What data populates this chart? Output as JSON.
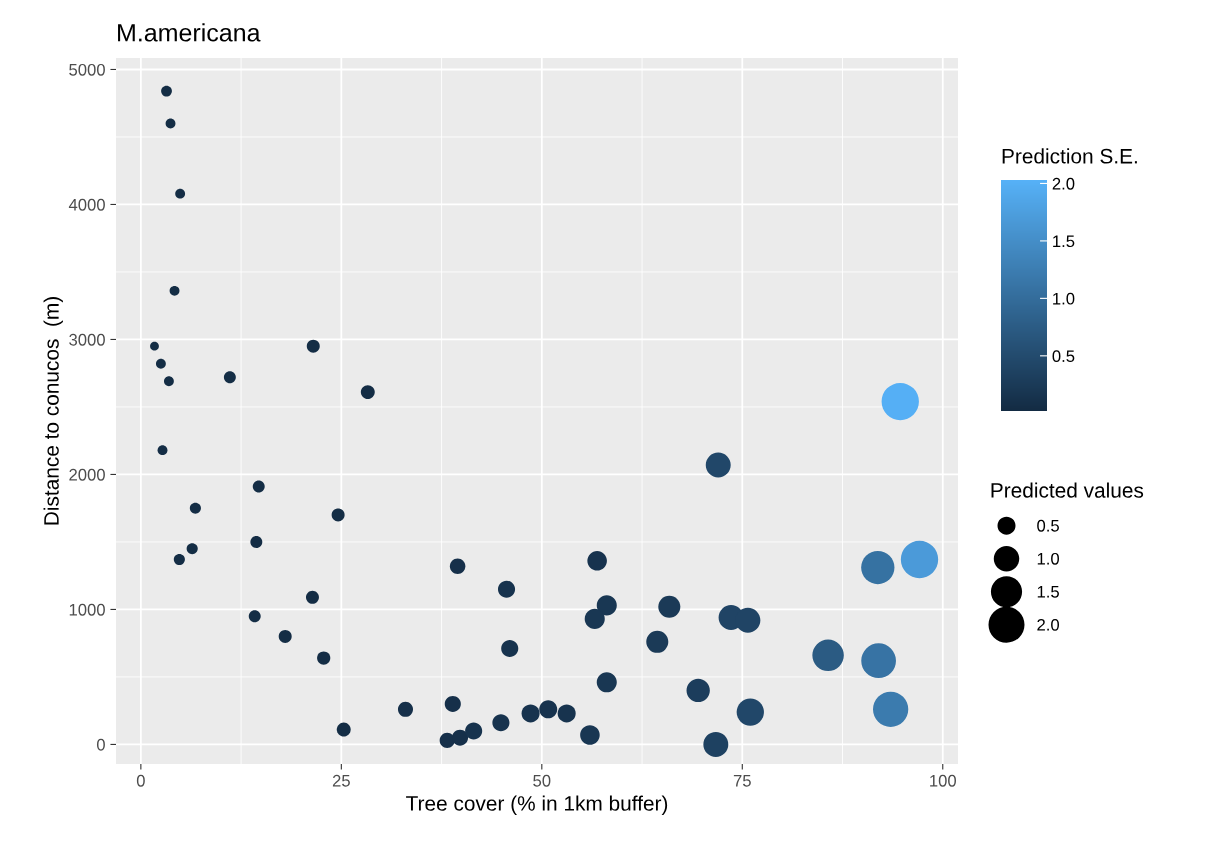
{
  "chart_data": {
    "type": "bubble",
    "title": "M.americana",
    "xlabel": "Tree cover (% in 1km buffer)",
    "ylabel": "Distance to conucos  (m)",
    "clabel": "Prediction S.E.",
    "legend_title": "Predicted values",
    "x": [
      3.2,
      3.7,
      4.9,
      4.2,
      1.7,
      11.1,
      21.5,
      28.3,
      2.5,
      3.5,
      2.7,
      14.7,
      6.8,
      24.6,
      14.4,
      6.4,
      4.8,
      39.5,
      45.6,
      21.4,
      14.2,
      18.0,
      46.0,
      22.8,
      33.0,
      38.9,
      25.3,
      38.2,
      39.8,
      41.5,
      44.9,
      94.7,
      72.0,
      91.9,
      97.1,
      56.9,
      58.1,
      56.6,
      65.9,
      73.6,
      75.7,
      64.4,
      85.7,
      92.0,
      58.1,
      69.5,
      93.5,
      76.0,
      48.6,
      50.8,
      53.1,
      56.0,
      71.7
    ],
    "values": [
      4840,
      4600,
      4080,
      3360,
      2950,
      2720,
      2950,
      2610,
      2820,
      2690,
      2180,
      1910,
      1750,
      1700,
      1500,
      1450,
      1370,
      1320,
      1150,
      1090,
      950,
      800,
      710,
      640,
      260,
      300,
      110,
      30,
      50,
      100,
      160,
      2540,
      2070,
      1310,
      1370,
      1360,
      1030,
      930,
      1020,
      940,
      920,
      760,
      660,
      620,
      460,
      400,
      260,
      240,
      230,
      260,
      230,
      70,
      0
    ],
    "sizes": [
      0.18,
      0.15,
      0.15,
      0.15,
      0.12,
      0.22,
      0.26,
      0.3,
      0.15,
      0.15,
      0.15,
      0.22,
      0.19,
      0.26,
      0.22,
      0.19,
      0.19,
      0.37,
      0.45,
      0.26,
      0.22,
      0.26,
      0.45,
      0.27,
      0.35,
      0.4,
      0.3,
      0.35,
      0.4,
      0.45,
      0.45,
      2.15,
      0.96,
      1.71,
      2.15,
      0.59,
      0.62,
      0.62,
      0.75,
      0.96,
      0.96,
      0.75,
      1.53,
      1.86,
      0.62,
      0.84,
      1.92,
      1.15,
      0.5,
      0.5,
      0.5,
      0.59,
      0.96
    ],
    "cvalues": [
      0.05,
      0.05,
      0.05,
      0.05,
      0.05,
      0.05,
      0.05,
      0.05,
      0.05,
      0.05,
      0.05,
      0.05,
      0.05,
      0.05,
      0.05,
      0.05,
      0.05,
      0.1,
      0.15,
      0.05,
      0.05,
      0.05,
      0.15,
      0.05,
      0.1,
      0.1,
      0.05,
      0.1,
      0.1,
      0.15,
      0.15,
      2.0,
      0.45,
      1.08,
      1.69,
      0.15,
      0.2,
      0.2,
      0.25,
      0.4,
      0.4,
      0.25,
      0.74,
      1.1,
      0.2,
      0.3,
      1.22,
      0.45,
      0.15,
      0.15,
      0.15,
      0.2,
      0.35
    ],
    "xlim": [
      -3.1,
      101.9
    ],
    "ylim": [
      -145,
      5085
    ],
    "xticks": [
      0,
      25,
      50,
      75,
      100
    ],
    "yticks": [
      0,
      1000,
      2000,
      3000,
      4000,
      5000
    ],
    "clim": [
      0.02,
      2.03
    ],
    "cticks": [
      {
        "value": 0.5,
        "label": "0.5"
      },
      {
        "value": 1.0,
        "label": "1.0"
      },
      {
        "value": 1.5,
        "label": "1.5"
      },
      {
        "value": 2.0,
        "label": "2.0"
      }
    ],
    "size_legend": [
      {
        "value": 0.5,
        "label": "0.5"
      },
      {
        "value": 1.0,
        "label": "1.0"
      },
      {
        "value": 1.5,
        "label": "1.5"
      },
      {
        "value": 2.0,
        "label": "2.0"
      }
    ],
    "grid": true,
    "marker": "circle"
  }
}
